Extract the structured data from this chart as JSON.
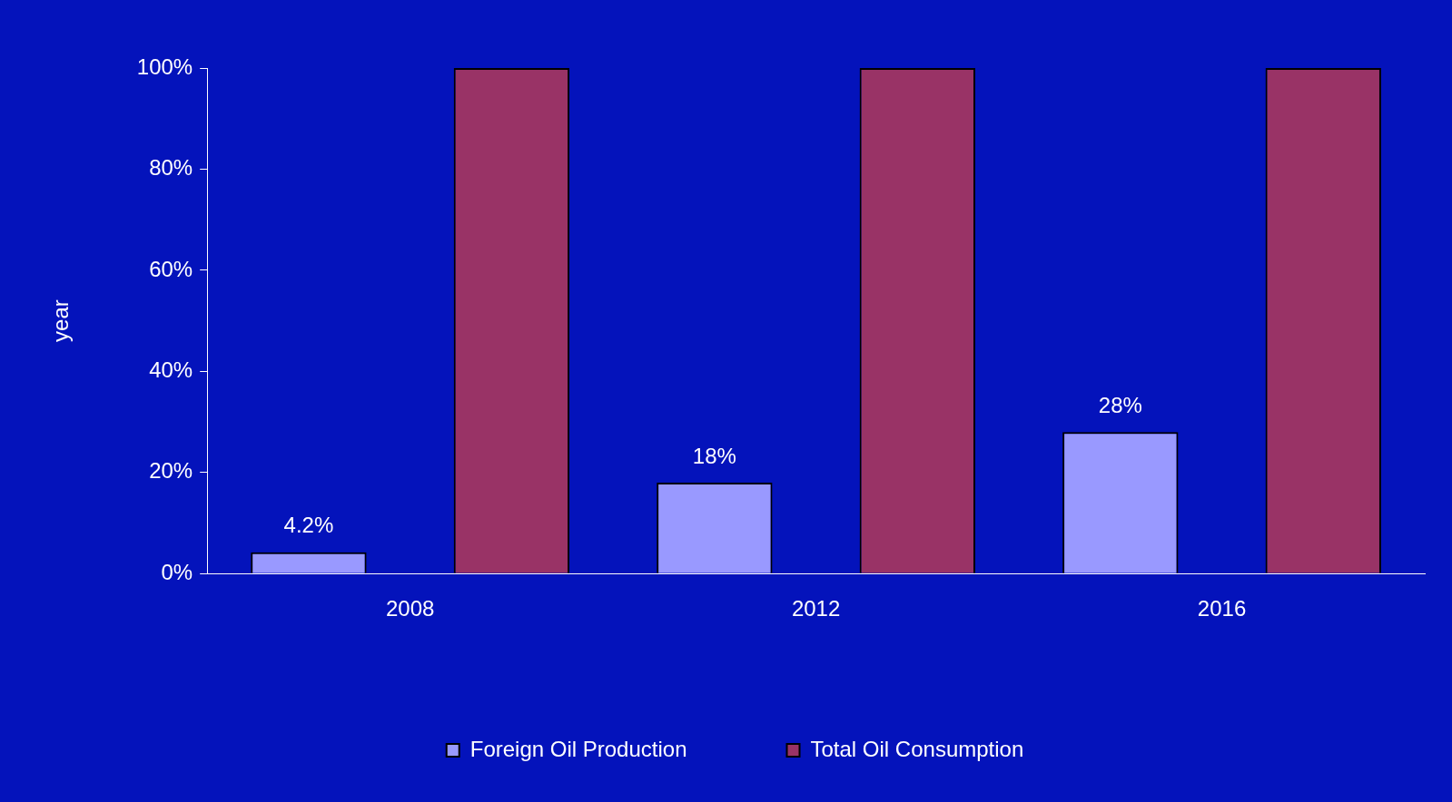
{
  "chart_data": {
    "type": "bar",
    "ylabel": "year",
    "categories": [
      "2008",
      "2012",
      "2016"
    ],
    "series": [
      {
        "name": "Foreign Oil Production",
        "color": "#9999ff",
        "values": [
          4.2,
          18,
          28
        ],
        "value_labels": [
          "4.2%",
          "18%",
          "28%"
        ]
      },
      {
        "name": "Total Oil Consumption",
        "color": "#993366",
        "values": [
          100,
          100,
          100
        ]
      }
    ],
    "ylim": [
      0,
      100
    ],
    "yticks": [
      {
        "value": 0,
        "label": "0%"
      },
      {
        "value": 20,
        "label": "20%"
      },
      {
        "value": 40,
        "label": "40%"
      },
      {
        "value": 60,
        "label": "60%"
      },
      {
        "value": 80,
        "label": "80%"
      },
      {
        "value": 100,
        "label": "100%"
      }
    ],
    "grid": false,
    "legend": "bottom"
  }
}
